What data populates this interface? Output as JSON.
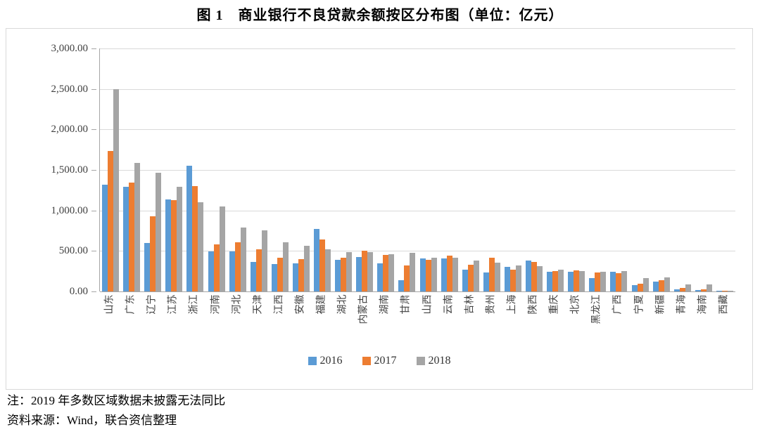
{
  "title": "图 1　商业银行不良贷款余额按区分布图（单位：亿元）",
  "notes": {
    "line1": "注：2019 年多数区域数据未披露无法同比",
    "line2": "资料来源：Wind，联合资信整理"
  },
  "chart_data": {
    "type": "bar",
    "title": "图 1 商业银行不良贷款余额按区分布图（单位：亿元）",
    "categories": [
      "山东",
      "广东",
      "辽宁",
      "江苏",
      "浙江",
      "河南",
      "河北",
      "天津",
      "江西",
      "安徽",
      "福建",
      "湖北",
      "内蒙古",
      "湖南",
      "甘肃",
      "山西",
      "云南",
      "吉林",
      "贵州",
      "上海",
      "陕西",
      "重庆",
      "北京",
      "黑龙江",
      "广西",
      "宁夏",
      "新疆",
      "青海",
      "海南",
      "西藏"
    ],
    "series": [
      {
        "name": "2016",
        "color": "#5B9BD5",
        "values": [
          1315,
          1295,
          600,
          1135,
          1555,
          490,
          495,
          365,
          340,
          345,
          775,
          390,
          425,
          345,
          140,
          405,
          405,
          270,
          235,
          300,
          385,
          245,
          245,
          165,
          245,
          75,
          120,
          30,
          20,
          2
        ]
      },
      {
        "name": "2017",
        "color": "#ED7D31",
        "values": [
          1730,
          1340,
          930,
          1130,
          1300,
          585,
          610,
          520,
          420,
          400,
          645,
          415,
          505,
          455,
          325,
          390,
          440,
          330,
          420,
          265,
          365,
          255,
          260,
          230,
          225,
          95,
          135,
          45,
          30,
          3
        ]
      },
      {
        "name": "2018",
        "color": "#A5A5A5",
        "values": [
          2500,
          1590,
          1465,
          1295,
          1100,
          1045,
          785,
          755,
          610,
          560,
          520,
          485,
          485,
          460,
          475,
          420,
          415,
          385,
          355,
          325,
          315,
          265,
          255,
          245,
          255,
          165,
          175,
          90,
          85,
          5
        ]
      }
    ],
    "xlabel": "",
    "ylabel": "",
    "ylim": [
      0,
      3000
    ],
    "ytick_step": 500,
    "ytick_labels": [
      "0.00",
      "500.00",
      "1,000.00",
      "1,500.00",
      "2,000.00",
      "2,500.00",
      "3,000.00"
    ],
    "grid": true,
    "legend_position": "bottom",
    "bar_colors_note": {
      "2016": "#5B9BD5",
      "2017": "#ED7D31",
      "2018": "#A5A5A5"
    }
  }
}
